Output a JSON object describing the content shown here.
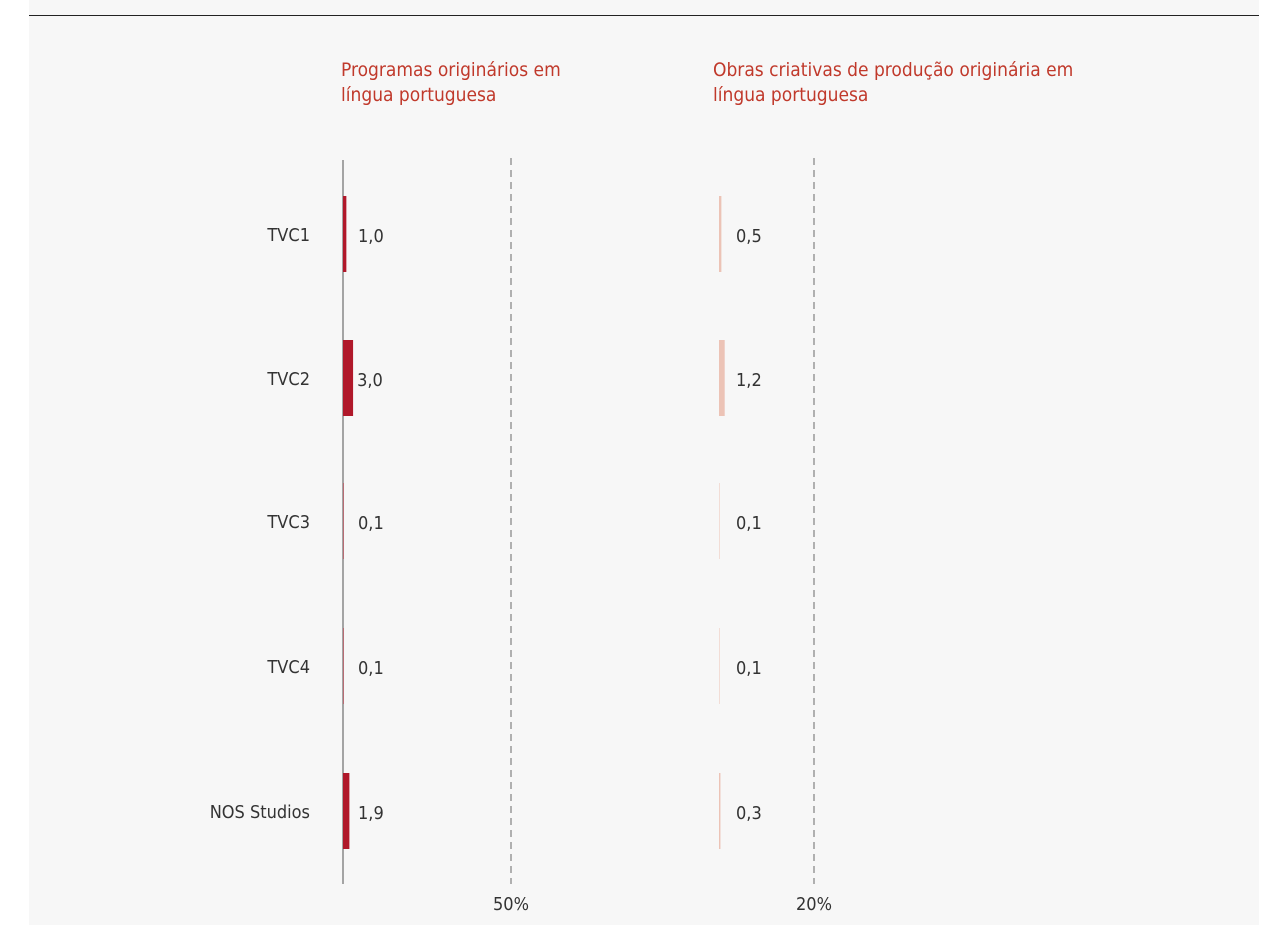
{
  "colors": {
    "series_1": "#b0182a",
    "series_2": "#ecc3b6",
    "panel_title": "#c0392b",
    "text": "#333333",
    "axis": "#888888",
    "reference_line": "#999999"
  },
  "chart_data": [
    {
      "type": "bar",
      "orientation": "horizontal",
      "title": "Programas originários em\nlíngua portuguesa",
      "categories": [
        "TVC1",
        "TVC2",
        "TVC3",
        "TVC4",
        "NOS Studios"
      ],
      "values": [
        1.0,
        3.0,
        0.1,
        0.1,
        1.9
      ],
      "value_labels": [
        "1,0",
        "3,0",
        "0,1",
        "0,1",
        "1,9"
      ],
      "reference_line": {
        "value": 50,
        "label": "50%"
      },
      "xlim": [
        0,
        50
      ],
      "color_key": "series_1"
    },
    {
      "type": "bar",
      "orientation": "horizontal",
      "title": "Obras criativas de produção originária em\nlíngua portuguesa",
      "categories": [
        "TVC1",
        "TVC2",
        "TVC3",
        "TVC4",
        "NOS Studios"
      ],
      "values": [
        0.5,
        1.2,
        0.1,
        0.1,
        0.3
      ],
      "value_labels": [
        "0,5",
        "1,2",
        "0,1",
        "0,1",
        "0,3"
      ],
      "reference_line": {
        "value": 20,
        "label": "20%"
      },
      "xlim": [
        0,
        20
      ],
      "color_key": "series_2"
    }
  ]
}
